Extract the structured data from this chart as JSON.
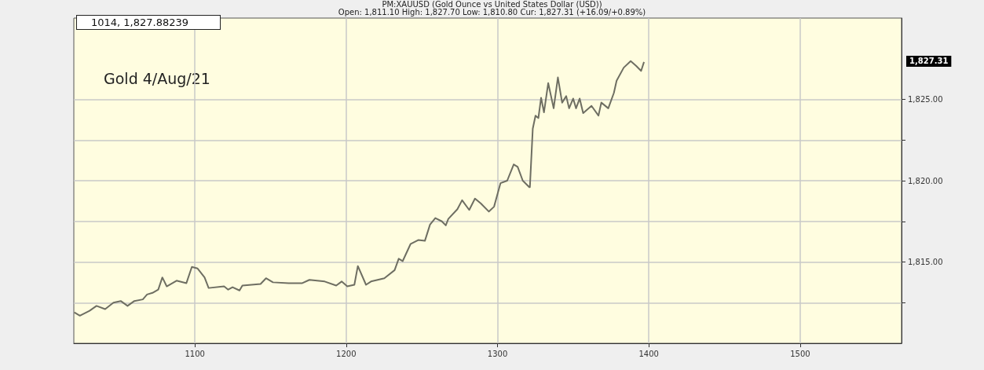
{
  "chart_data": {
    "type": "line",
    "title": "PM:XAUUSD (Gold Ounce vs United States Dollar (USD))",
    "subtitle": "Open: 1,811.10 High: 1,827.70 Low: 1,810.80 Cur: 1,827.31 (+16.09/+0.89%)",
    "annotations": [
      "1014, 1,827.88239",
      "Gold 4/Aug/21",
      "1,827.31"
    ],
    "x": [
      1020.3,
      1024,
      1030.4,
      1035,
      1040.7,
      1046.2,
      1051,
      1055.5,
      1060,
      1065.6,
      1068.4,
      1072,
      1075.8,
      1078.5,
      1081.4,
      1087.9,
      1094.4,
      1098,
      1101.8,
      1106.4,
      1109.1,
      1119.3,
      1122,
      1124.9,
      1129.5,
      1131.4,
      1143.4,
      1147,
      1151.6,
      1162,
      1171,
      1175.7,
      1185.8,
      1193.4,
      1197,
      1200.7,
      1205.4,
      1207.7,
      1213.1,
      1216.4,
      1225.2,
      1232,
      1234.7,
      1237.3,
      1242.5,
      1247.6,
      1252,
      1255.4,
      1258.9,
      1263.2,
      1265.8,
      1267.5,
      1273.5,
      1276.6,
      1281.3,
      1285.1,
      1289,
      1294.3,
      1297.7,
      1302,
      1306.4,
      1310.7,
      1313.3,
      1316.7,
      1321,
      1321.4,
      1323.3,
      1325.1,
      1327,
      1328.8,
      1330.7,
      1333.5,
      1337.1,
      1339.9,
      1342.7,
      1345.4,
      1347.3,
      1350,
      1351.9,
      1354.3,
      1356.6,
      1362.1,
      1366.7,
      1368.6,
      1373.2,
      1376.9,
      1378.7,
      1383.4,
      1388,
      1391.7,
      1394.9,
      1396.8
    ],
    "series": [
      {
        "color": "#6e6e62",
        "values": [
          1811.9,
          1811.7,
          1812.0,
          1812.3,
          1812.1,
          1812.5,
          1812.6,
          1812.3,
          1812.6,
          1812.7,
          1813.0,
          1813.1,
          1813.3,
          1814.05,
          1813.5,
          1813.85,
          1813.7,
          1814.7,
          1814.6,
          1814.05,
          1813.4,
          1813.5,
          1813.3,
          1813.45,
          1813.25,
          1813.55,
          1813.65,
          1814.0,
          1813.75,
          1813.7,
          1813.7,
          1813.9,
          1813.8,
          1813.55,
          1813.8,
          1813.5,
          1813.6,
          1814.75,
          1813.6,
          1813.8,
          1814.0,
          1814.5,
          1815.2,
          1815.05,
          1816.1,
          1816.35,
          1816.3,
          1817.3,
          1817.7,
          1817.5,
          1817.25,
          1817.65,
          1818.25,
          1818.8,
          1818.2,
          1818.9,
          1818.6,
          1818.1,
          1818.4,
          1819.85,
          1820.0,
          1821.0,
          1820.85,
          1820.0,
          1819.6,
          1819.6,
          1823.2,
          1824.0,
          1823.85,
          1825.1,
          1824.2,
          1826.0,
          1824.45,
          1826.35,
          1824.8,
          1825.2,
          1824.45,
          1825.05,
          1824.45,
          1825.05,
          1824.15,
          1824.6,
          1824.0,
          1824.8,
          1824.45,
          1825.4,
          1826.15,
          1826.95,
          1827.35,
          1827.05,
          1826.75,
          1827.3
        ]
      }
    ],
    "xlim": [
      1020,
      1567
    ],
    "xticks": [
      1100,
      1200,
      1300,
      1400,
      1500
    ],
    "ylim": [
      1810,
      1830
    ],
    "yticks": [
      {
        "value": 1812.5,
        "label": null
      },
      {
        "value": 1815,
        "label": "1,815.00"
      },
      {
        "value": 1817.5,
        "label": null
      },
      {
        "value": 1820,
        "label": "1,820.00"
      },
      {
        "value": 1822.5,
        "label": null
      },
      {
        "value": 1825,
        "label": "1,825.00"
      }
    ],
    "grid": true,
    "marker": "none",
    "line_style": "solid"
  }
}
